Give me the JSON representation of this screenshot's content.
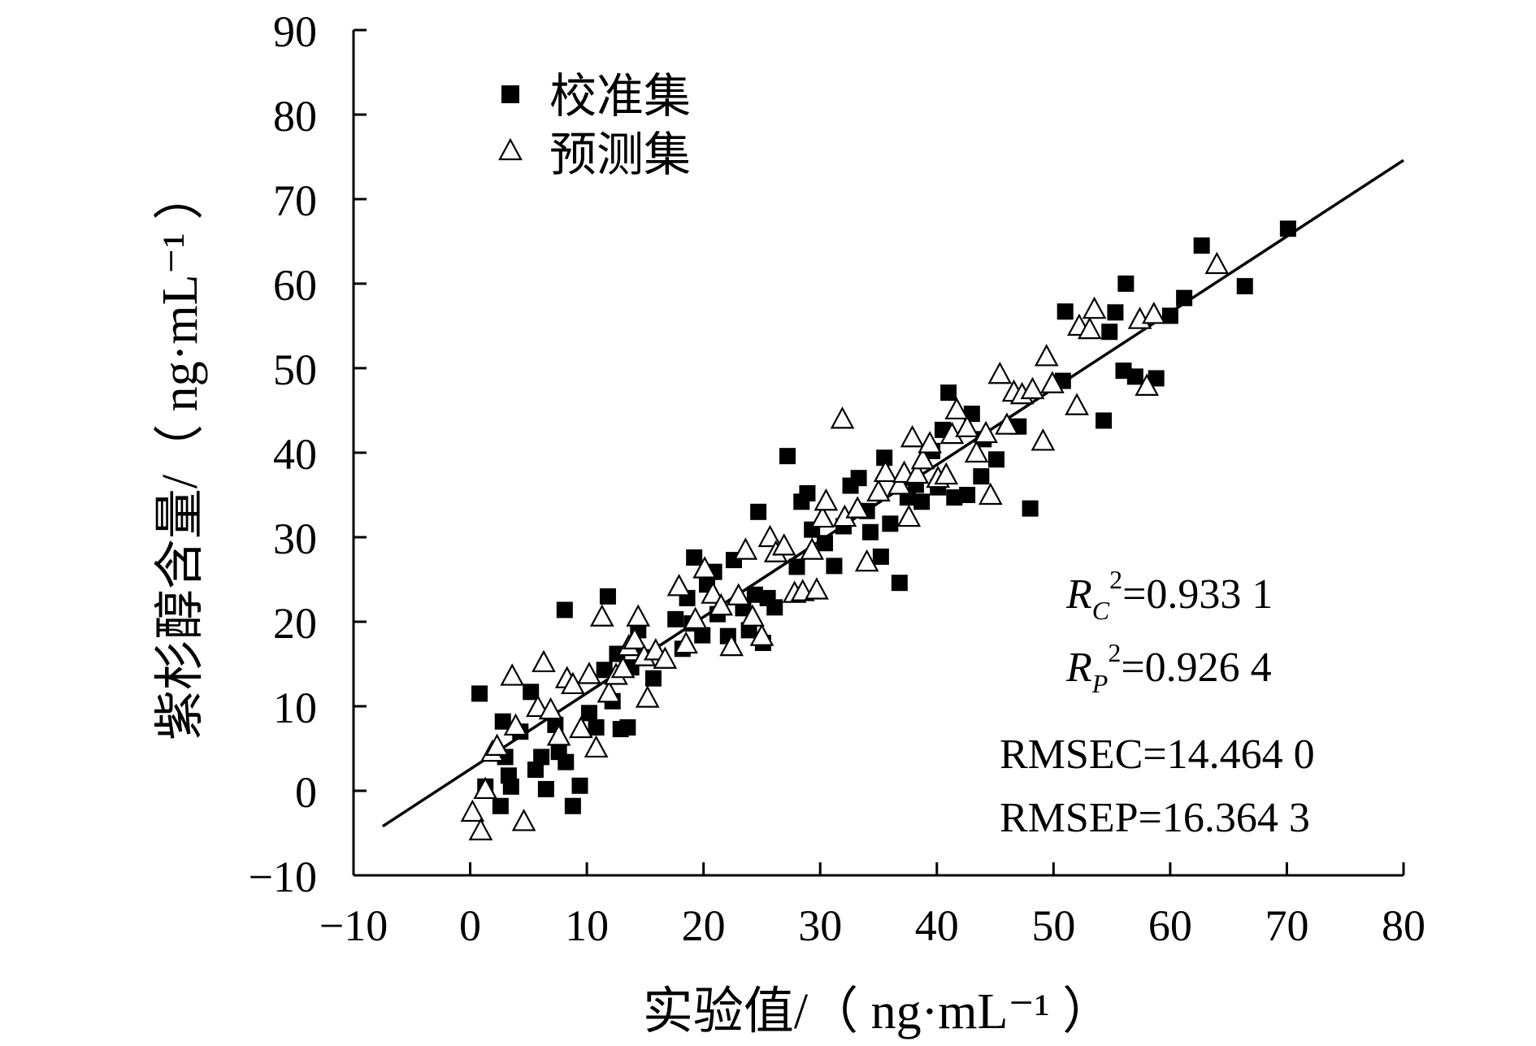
{
  "chart_data": {
    "type": "scatter",
    "title": "",
    "xlabel": "实验值/（ ng·mL⁻¹ ）",
    "ylabel": "紫杉醇含量/（ ng·mL⁻¹ ）",
    "xlim": [
      -10,
      80
    ],
    "ylim": [
      -10,
      90
    ],
    "x_ticks": [
      "−10",
      "0",
      "10",
      "20",
      "30",
      "40",
      "50",
      "60",
      "70",
      "80"
    ],
    "y_ticks": [
      "90",
      "80",
      "70",
      "60",
      "50",
      "40",
      "30",
      "20",
      "10",
      "0",
      "−10"
    ],
    "grid": false,
    "legend_position": "top-left",
    "fit_line": {
      "x": [
        -7.5,
        80
      ],
      "y": [
        -4.2,
        74.6
      ]
    },
    "annotations": {
      "rc2": {
        "sym": "R",
        "sub": "C",
        "sup": "2",
        "value": "=0.933 1"
      },
      "rp2": {
        "sym": "R",
        "sub": "P",
        "sup": "2",
        "value": "=0.926 4"
      },
      "rmsec": "RMSEC=14.464 0",
      "rmsep": "RMSEP=16.364 3"
    },
    "series": [
      {
        "name": "校准集",
        "marker": "filled-square",
        "color": "#000000",
        "points": [
          [
            0.8,
            11.5
          ],
          [
            1.3,
            0.5
          ],
          [
            2.6,
            -1.8
          ],
          [
            2.8,
            8.2
          ],
          [
            3.0,
            4.0
          ],
          [
            3.3,
            1.8
          ],
          [
            3.5,
            0.5
          ],
          [
            4.3,
            7.0
          ],
          [
            5.2,
            11.7
          ],
          [
            5.6,
            2.5
          ],
          [
            6.1,
            4.0
          ],
          [
            6.5,
            0.2
          ],
          [
            7.3,
            7.8
          ],
          [
            7.6,
            4.6
          ],
          [
            8.1,
            21.4
          ],
          [
            8.2,
            3.4
          ],
          [
            8.8,
            -1.8
          ],
          [
            9.4,
            0.6
          ],
          [
            10.2,
            9.2
          ],
          [
            10.8,
            7.5
          ],
          [
            11.5,
            14.3
          ],
          [
            11.8,
            23.0
          ],
          [
            12.2,
            10.6
          ],
          [
            12.6,
            16.2
          ],
          [
            12.9,
            7.3
          ],
          [
            13.5,
            7.5
          ],
          [
            13.8,
            14.6
          ],
          [
            14.4,
            19.0
          ],
          [
            15.0,
            15.8
          ],
          [
            15.7,
            13.3
          ],
          [
            17.6,
            20.3
          ],
          [
            18.2,
            16.8
          ],
          [
            18.6,
            22.8
          ],
          [
            19.0,
            19.8
          ],
          [
            19.2,
            27.6
          ],
          [
            19.9,
            18.4
          ],
          [
            20.3,
            24.4
          ],
          [
            20.9,
            25.9
          ],
          [
            21.2,
            20.9
          ],
          [
            22.1,
            18.3
          ],
          [
            22.6,
            27.3
          ],
          [
            23.4,
            21.6
          ],
          [
            23.9,
            19.0
          ],
          [
            24.4,
            23.2
          ],
          [
            24.7,
            33.0
          ],
          [
            25.1,
            17.5
          ],
          [
            25.5,
            22.8
          ],
          [
            26.1,
            21.7
          ],
          [
            27.2,
            39.6
          ],
          [
            28.0,
            26.5
          ],
          [
            28.4,
            34.2
          ],
          [
            28.9,
            35.2
          ],
          [
            29.3,
            30.9
          ],
          [
            30.4,
            29.3
          ],
          [
            31.2,
            26.6
          ],
          [
            32.0,
            31.3
          ],
          [
            32.6,
            36.1
          ],
          [
            33.3,
            37.0
          ],
          [
            34.0,
            33.1
          ],
          [
            34.3,
            30.6
          ],
          [
            35.2,
            27.7
          ],
          [
            35.5,
            39.4
          ],
          [
            36.0,
            31.6
          ],
          [
            36.8,
            24.6
          ],
          [
            37.5,
            34.7
          ],
          [
            38.2,
            36.2
          ],
          [
            38.7,
            34.2
          ],
          [
            39.6,
            40.2
          ],
          [
            40.1,
            35.9
          ],
          [
            40.5,
            42.7
          ],
          [
            41.0,
            47.1
          ],
          [
            41.5,
            34.7
          ],
          [
            42.6,
            35.0
          ],
          [
            43.0,
            44.6
          ],
          [
            43.8,
            37.2
          ],
          [
            44.0,
            41.6
          ],
          [
            45.1,
            39.2
          ],
          [
            47.0,
            43.1
          ],
          [
            48.0,
            33.4
          ],
          [
            50.8,
            48.5
          ],
          [
            51.0,
            56.7
          ],
          [
            54.3,
            43.8
          ],
          [
            54.8,
            54.3
          ],
          [
            55.3,
            56.6
          ],
          [
            56.0,
            49.7
          ],
          [
            56.2,
            60.0
          ],
          [
            57.0,
            49.0
          ],
          [
            58.8,
            48.8
          ],
          [
            60.0,
            56.2
          ],
          [
            61.2,
            58.3
          ],
          [
            62.7,
            64.5
          ],
          [
            66.4,
            59.7
          ],
          [
            70.1,
            66.5
          ]
        ]
      },
      {
        "name": "预测集",
        "marker": "hollow-triangle",
        "color": "#000000",
        "points": [
          [
            0.2,
            -2.5
          ],
          [
            0.9,
            -4.7
          ],
          [
            1.3,
            0.2
          ],
          [
            1.9,
            4.6
          ],
          [
            2.3,
            5.3
          ],
          [
            3.6,
            13.6
          ],
          [
            3.9,
            7.7
          ],
          [
            4.6,
            -3.6
          ],
          [
            5.8,
            9.9
          ],
          [
            6.3,
            15.2
          ],
          [
            6.9,
            9.6
          ],
          [
            7.6,
            6.5
          ],
          [
            8.3,
            13.3
          ],
          [
            8.8,
            12.6
          ],
          [
            9.5,
            7.4
          ],
          [
            10.2,
            13.8
          ],
          [
            10.8,
            5.1
          ],
          [
            11.3,
            20.6
          ],
          [
            11.9,
            11.6
          ],
          [
            12.5,
            13.7
          ],
          [
            13.1,
            14.5
          ],
          [
            13.6,
            17.1
          ],
          [
            14.1,
            17.9
          ],
          [
            14.4,
            20.6
          ],
          [
            14.9,
            15.9
          ],
          [
            15.2,
            11.0
          ],
          [
            15.9,
            16.6
          ],
          [
            16.7,
            15.6
          ],
          [
            17.9,
            24.2
          ],
          [
            18.5,
            17.4
          ],
          [
            19.3,
            20.3
          ],
          [
            20.1,
            26.3
          ],
          [
            20.8,
            23.3
          ],
          [
            21.5,
            21.9
          ],
          [
            22.4,
            17.1
          ],
          [
            23.0,
            23.1
          ],
          [
            23.6,
            28.5
          ],
          [
            24.2,
            20.6
          ],
          [
            25.0,
            18.3
          ],
          [
            25.7,
            30.0
          ],
          [
            26.2,
            28.2
          ],
          [
            26.9,
            29.0
          ],
          [
            27.8,
            23.4
          ],
          [
            28.5,
            23.6
          ],
          [
            29.3,
            28.5
          ],
          [
            29.7,
            23.8
          ],
          [
            30.2,
            32.3
          ],
          [
            30.5,
            34.3
          ],
          [
            31.9,
            44.0
          ],
          [
            32.1,
            32.4
          ],
          [
            33.2,
            33.4
          ],
          [
            34.0,
            27.1
          ],
          [
            35.0,
            35.4
          ],
          [
            35.6,
            37.7
          ],
          [
            36.8,
            36.2
          ],
          [
            37.2,
            37.6
          ],
          [
            37.6,
            32.4
          ],
          [
            37.9,
            41.8
          ],
          [
            38.3,
            37.5
          ],
          [
            38.8,
            39.2
          ],
          [
            39.4,
            41.1
          ],
          [
            40.1,
            37.0
          ],
          [
            40.8,
            37.4
          ],
          [
            41.3,
            42.2
          ],
          [
            41.7,
            45.1
          ],
          [
            42.6,
            43.0
          ],
          [
            43.4,
            40.0
          ],
          [
            44.2,
            42.3
          ],
          [
            44.6,
            35.0
          ],
          [
            45.4,
            49.3
          ],
          [
            46.0,
            43.3
          ],
          [
            46.6,
            47.2
          ],
          [
            47.3,
            46.9
          ],
          [
            48.2,
            47.5
          ],
          [
            49.1,
            41.4
          ],
          [
            49.4,
            51.4
          ],
          [
            49.9,
            48.2
          ],
          [
            52.0,
            45.6
          ],
          [
            52.2,
            55.0
          ],
          [
            53.1,
            54.6
          ],
          [
            53.5,
            57.0
          ],
          [
            57.4,
            55.8
          ],
          [
            58.0,
            47.9
          ],
          [
            58.6,
            56.4
          ],
          [
            64.0,
            62.3
          ]
        ]
      }
    ]
  }
}
